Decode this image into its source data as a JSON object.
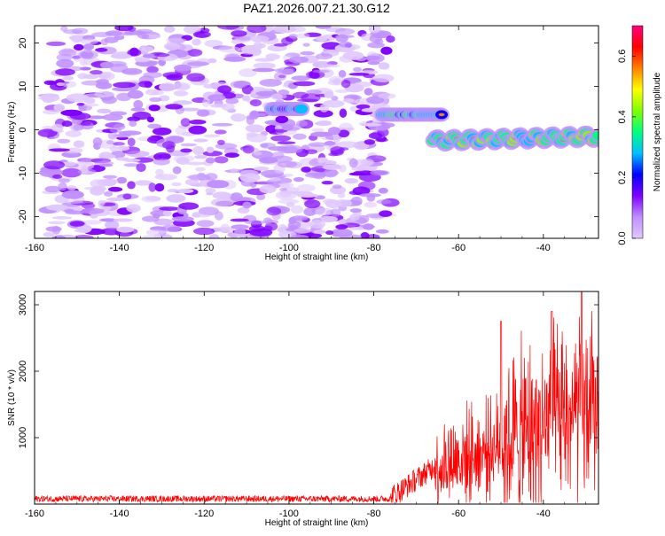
{
  "title": "PAZ1.2026.007.21.30.G12",
  "chart_data": [
    {
      "type": "heatmap",
      "name": "spectrogram",
      "xlabel": "Height of straight line (km)",
      "ylabel": "Frequency (Hz)",
      "xlim": [
        -160,
        -27
      ],
      "ylim": [
        -25,
        24
      ],
      "xticks": [
        -160,
        -140,
        -120,
        -100,
        -80,
        -60,
        -40
      ],
      "yticks": [
        -20,
        -10,
        0,
        10,
        20
      ],
      "colorbar": {
        "label": "Normalized spectral amplitude",
        "range": [
          0.0,
          0.7
        ],
        "ticks": [
          0.0,
          0.2,
          0.4,
          0.6
        ],
        "colors": [
          "#e0c8ff",
          "#c090ff",
          "#8000ff",
          "#0000ff",
          "#00c0ff",
          "#00ff80",
          "#80ff00",
          "#ffff00",
          "#ff8000",
          "#ff0000",
          "#ff0080"
        ]
      },
      "features": {
        "noise_region_x": [
          -157,
          -76
        ],
        "noise_freq_range": [
          -25,
          24
        ],
        "tone_segments": [
          {
            "x": [
              -104,
              -97
            ],
            "freq": 4.8,
            "amp": 0.4
          },
          {
            "x": [
              -78,
              -64
            ],
            "freq": 3.5,
            "amp": 0.5
          },
          {
            "x": [
              -66,
              -27
            ],
            "freq_start": -2.5,
            "freq_end": -1.5,
            "amp": 0.6
          }
        ]
      }
    },
    {
      "type": "line",
      "name": "snr",
      "xlabel": "Height of straight line (km)",
      "ylabel": "SNR (10 * v/v)",
      "xlim": [
        -160,
        -27
      ],
      "ylim": [
        0,
        3200
      ],
      "xticks": [
        -160,
        -140,
        -120,
        -100,
        -80,
        -60,
        -40
      ],
      "yticks": [
        1000,
        2000,
        3000
      ],
      "color": "#ff0000",
      "segments": [
        {
          "x": [
            -160,
            -76
          ],
          "mean": 80,
          "spread": 80
        },
        {
          "x": [
            -76,
            -66
          ],
          "mean_start": 100,
          "mean_end": 550,
          "spread": 300
        },
        {
          "x": [
            -66,
            -50
          ],
          "mean_start": 550,
          "mean_end": 900,
          "spread": 900
        },
        {
          "x": [
            -50,
            -27
          ],
          "mean_start": 900,
          "mean_end": 1500,
          "spread": 1700
        }
      ],
      "peaks": [
        {
          "x": -50,
          "y": 2750
        },
        {
          "x": -38,
          "y": 2900
        },
        {
          "x": -31,
          "y": 3200
        }
      ]
    }
  ]
}
